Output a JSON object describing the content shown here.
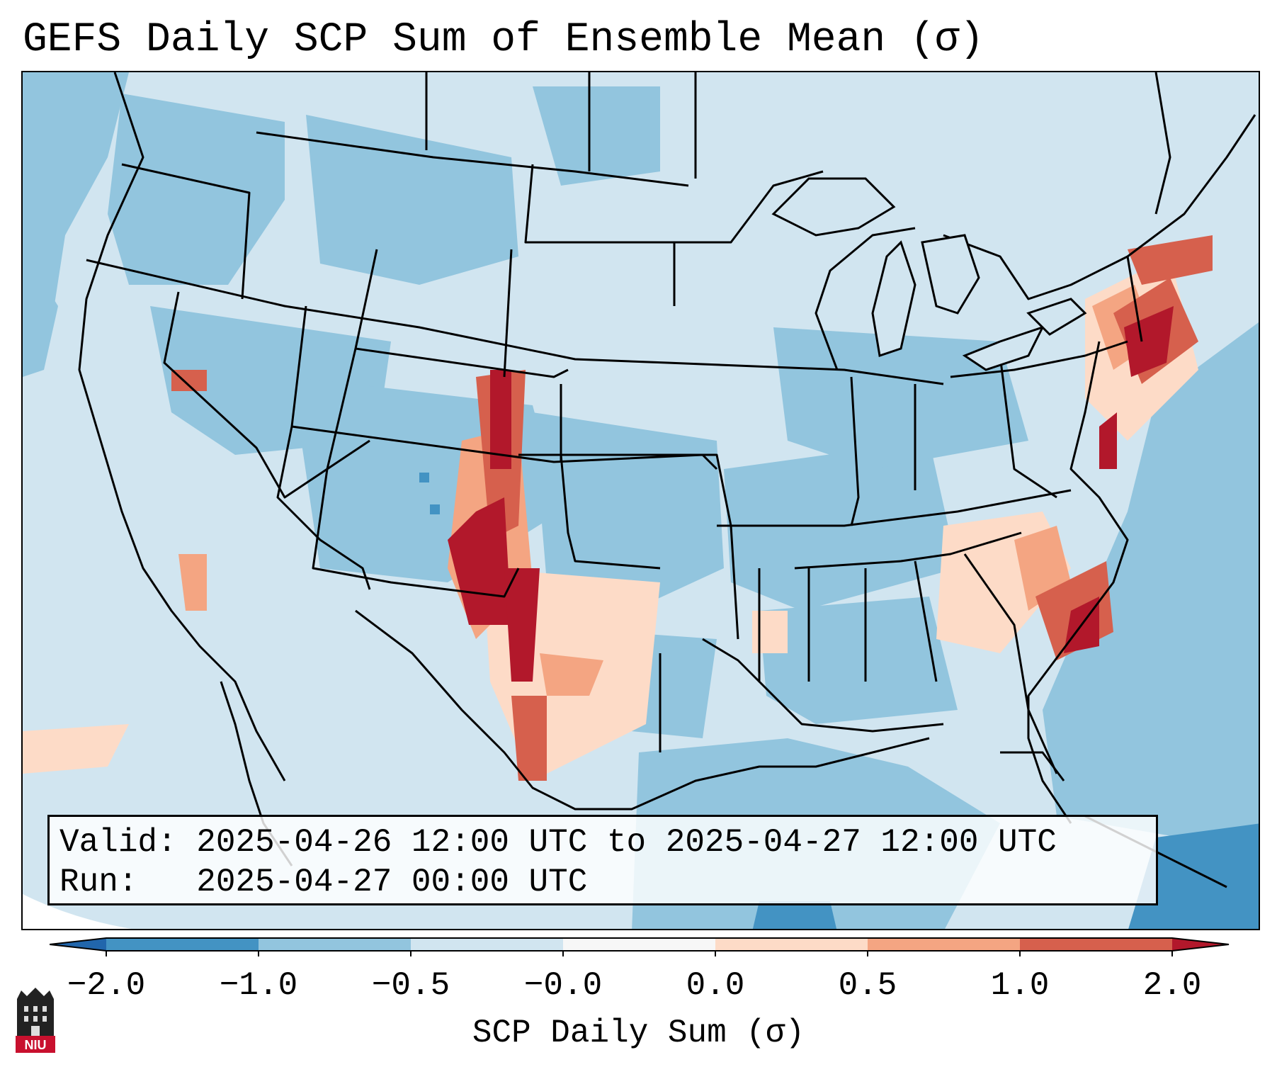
{
  "title": "GEFS Daily SCP Sum of Ensemble Mean (σ)",
  "info": {
    "valid_key": "Valid:",
    "valid_value": "2025-04-26 12:00 UTC to 2025-04-27 12:00 UTC",
    "run_key": "Run:",
    "run_value": "2025-04-27 00:00 UTC"
  },
  "colorbar": {
    "label": "SCP Daily Sum (σ)",
    "ticks": [
      "−2.0",
      "−1.0",
      "−0.5",
      "−0.0",
      "0.0",
      "0.5",
      "1.0",
      "2.0"
    ],
    "colors": [
      "#2166ac",
      "#4393c3",
      "#92c5de",
      "#d1e5f0",
      "#f7f7f7",
      "#fddbc7",
      "#f4a582",
      "#d6604d",
      "#b2182b"
    ],
    "extend": "both"
  },
  "logo": {
    "text": "NIU",
    "color": "#c8102e"
  },
  "map": {
    "projection": "Lambert conformal, CONUS",
    "ocean_color": "#92c5de",
    "land_color": "#d1e5f0"
  }
}
